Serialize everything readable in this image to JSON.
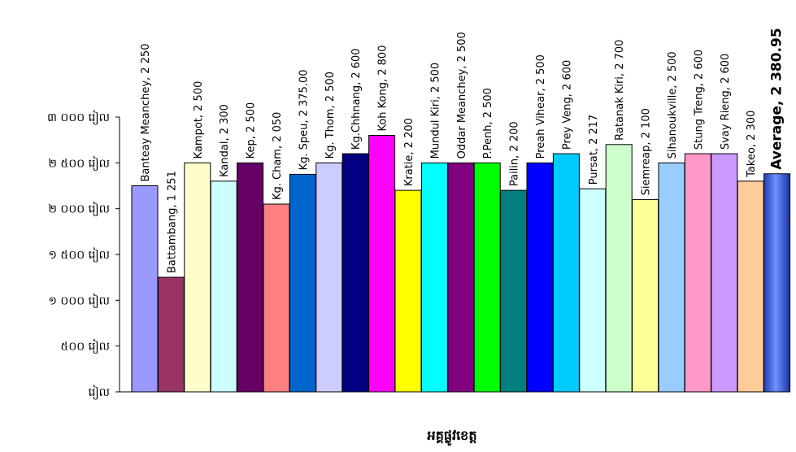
{
  "chart_data": {
    "type": "bar",
    "xlabel": "អគ្គផ្លូវខេត្ត",
    "ylabel": "",
    "ylim": [
      0,
      3000
    ],
    "y_ticks": [
      {
        "value": 0,
        "label": "រៀល"
      },
      {
        "value": 500,
        "label": "៥០០ រៀល"
      },
      {
        "value": 1000,
        "label": "១ ០០០ រៀល"
      },
      {
        "value": 1500,
        "label": "១ ៥០០ រៀល"
      },
      {
        "value": 2000,
        "label": "២ ០០០ រៀល"
      },
      {
        "value": 2500,
        "label": "២ ៥០០ រៀល"
      },
      {
        "value": 3000,
        "label": "៣ ០០០ រៀល"
      }
    ],
    "grid": false,
    "bars": [
      {
        "category": "Banteay Meanchey",
        "value": 2250,
        "label": "Banteay Meanchey, 2 250",
        "color": "#9999ff"
      },
      {
        "category": "Battambang",
        "value": 1251,
        "label": "Battambang, 1 251",
        "color": "#993366"
      },
      {
        "category": "Kampot",
        "value": 2500,
        "label": "Kampot, 2 500",
        "color": "#ffffcc"
      },
      {
        "category": "Kandal",
        "value": 2300,
        "label": "Kandal, 2 300",
        "color": "#ccffff"
      },
      {
        "category": "Kep",
        "value": 2500,
        "label": "Kep, 2 500",
        "color": "#660066"
      },
      {
        "category": "Kg. Cham",
        "value": 2050,
        "label": "Kg. Cham, 2 050",
        "color": "#ff8080"
      },
      {
        "category": "Kg. Speu",
        "value": 2375,
        "label": "Kg. Speu, 2 375.00",
        "color": "#0066cc"
      },
      {
        "category": "Kg. Thom",
        "value": 2500,
        "label": "Kg. Thom, 2 500",
        "color": "#ccccff"
      },
      {
        "category": "Kg.Chhnang",
        "value": 2600,
        "label": "Kg.Chhnang, 2 600",
        "color": "#000080"
      },
      {
        "category": "Koh Kong",
        "value": 2800,
        "label": "Koh Kong, 2 800",
        "color": "#ff00ff"
      },
      {
        "category": "Kratie",
        "value": 2200,
        "label": "Kratie, 2 200",
        "color": "#ffff00"
      },
      {
        "category": "Mundul Kiri",
        "value": 2500,
        "label": "Mundul Kiri, 2 500",
        "color": "#00ffff"
      },
      {
        "category": "Oddar Meanchey",
        "value": 2500,
        "label": "Oddar Meanchey, 2 500",
        "color": "#800080"
      },
      {
        "category": "P.Penh",
        "value": 2500,
        "label": "P.Penh, 2 500",
        "color": "#00ff00"
      },
      {
        "category": "Pailin",
        "value": 2200,
        "label": "Pailin, 2 200",
        "color": "#008080"
      },
      {
        "category": "Preah Vihear",
        "value": 2500,
        "label": "Preah Vihear, 2 500",
        "color": "#0000ff"
      },
      {
        "category": "Prey Veng",
        "value": 2600,
        "label": "Prey Veng, 2 600",
        "color": "#00ccff"
      },
      {
        "category": "Pursat",
        "value": 2217,
        "label": "Pursat, 2 217",
        "color": "#ccffff"
      },
      {
        "category": "Ratanak Kiri",
        "value": 2700,
        "label": "Ratanak Kiri, 2 700",
        "color": "#ccffcc"
      },
      {
        "category": "Siemreap",
        "value": 2100,
        "label": "Siemreap, 2 100",
        "color": "#ffff99"
      },
      {
        "category": "Sihanoukville",
        "value": 2500,
        "label": "Sihanoukville, 2 500",
        "color": "#99ccff"
      },
      {
        "category": "Stung Treng",
        "value": 2600,
        "label": "Stung Treng, 2 600",
        "color": "#ff99cc"
      },
      {
        "category": "Svay Rieng",
        "value": 2600,
        "label": "Svay Rieng, 2 600",
        "color": "#cc99ff"
      },
      {
        "category": "Takeo",
        "value": 2300,
        "label": "Takeo, 2 300",
        "color": "#ffcc99"
      },
      {
        "category": "Average",
        "value": 2380.95,
        "label": "Average, 2 380.95",
        "color": "#3366ff",
        "bold": true
      }
    ]
  }
}
